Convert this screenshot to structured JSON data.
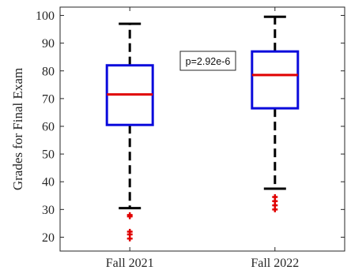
{
  "chart_data": {
    "type": "boxplot",
    "ylabel": "Grades for Final Exam",
    "ylim": [
      15,
      103
    ],
    "yticks": [
      20,
      30,
      40,
      50,
      60,
      70,
      80,
      90,
      100
    ],
    "categories": [
      "Fall 2021",
      "Fall 2022"
    ],
    "boxes": [
      {
        "category": "Fall 2021",
        "q1": 60.5,
        "median": 71.5,
        "q3": 82,
        "whisker_low": 30.5,
        "whisker_high": 97,
        "outliers": [
          28,
          27.5,
          22,
          21,
          19.5
        ]
      },
      {
        "category": "Fall 2022",
        "q1": 66.5,
        "median": 78.5,
        "q3": 87,
        "whisker_low": 37.5,
        "whisker_high": 99.5,
        "outliers": [
          34.5,
          33,
          31.5,
          30
        ]
      }
    ],
    "annotation": "p=2.92e-6",
    "grid": false,
    "colors": {
      "box": "#0b0bdc",
      "median": "#e00000",
      "whisker": "#000000",
      "outlier": "#e00000",
      "axes": "#262626"
    }
  }
}
